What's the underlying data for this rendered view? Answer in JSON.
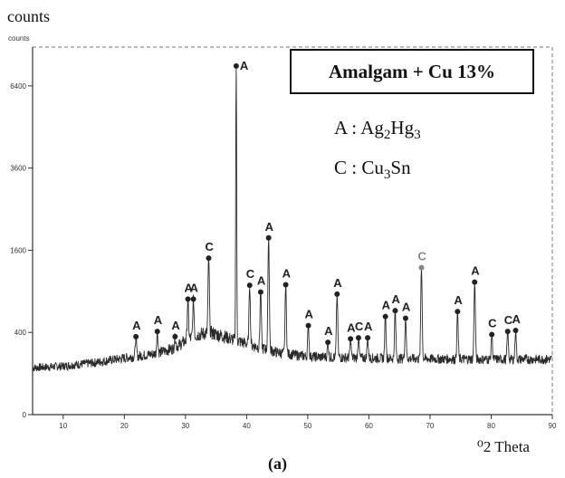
{
  "figure": {
    "top_label": "counts",
    "x_unit_label": "⁰2 Theta",
    "caption": "(a)",
    "sample_title": "Amalgam + Cu 13%",
    "legend": [
      {
        "letter": "A",
        "sep": " : ",
        "parts": [
          [
            "Ag",
            "2"
          ],
          [
            "Hg",
            "3"
          ]
        ]
      },
      {
        "letter": "C",
        "sep": " : ",
        "parts": [
          [
            "Cu",
            "3"
          ],
          [
            "Sn",
            ""
          ]
        ]
      }
    ]
  },
  "chart_data": {
    "type": "line",
    "title": "Amalgam + Cu 13%",
    "xlabel": "⁰2 Theta",
    "ylabel": "counts",
    "inner_ylabel": "counts",
    "xlim": [
      5,
      90
    ],
    "ylim": [
      0,
      8000
    ],
    "y_scale": "sqrt",
    "x_ticks": [
      10,
      20,
      30,
      40,
      50,
      60,
      70,
      80,
      90
    ],
    "y_ticks": [
      0,
      400,
      1600,
      3600,
      6400
    ],
    "grid": false,
    "legend": "top-right",
    "background_profile": [
      [
        5,
        130
      ],
      [
        10,
        140
      ],
      [
        15,
        160
      ],
      [
        20,
        190
      ],
      [
        25,
        220
      ],
      [
        28,
        260
      ],
      [
        30,
        320
      ],
      [
        32,
        380
      ],
      [
        34,
        400
      ],
      [
        36,
        370
      ],
      [
        38,
        330
      ],
      [
        42,
        270
      ],
      [
        45,
        230
      ],
      [
        50,
        200
      ],
      [
        55,
        195
      ],
      [
        60,
        190
      ],
      [
        70,
        185
      ],
      [
        80,
        182
      ],
      [
        90,
        182
      ]
    ],
    "peaks": [
      {
        "x": 21.9,
        "y": 360,
        "phase": "A"
      },
      {
        "x": 25.4,
        "y": 410,
        "phase": "A"
      },
      {
        "x": 28.3,
        "y": 360,
        "phase": "A"
      },
      {
        "x": 30.4,
        "y": 790,
        "phase": "A"
      },
      {
        "x": 31.3,
        "y": 790,
        "phase": "A"
      },
      {
        "x": 33.8,
        "y": 1450,
        "phase": "C"
      },
      {
        "x": 38.3,
        "y": 7200,
        "phase": "A"
      },
      {
        "x": 40.5,
        "y": 990,
        "phase": "C"
      },
      {
        "x": 42.3,
        "y": 890,
        "phase": "A"
      },
      {
        "x": 43.6,
        "y": 1850,
        "phase": "A"
      },
      {
        "x": 46.4,
        "y": 1000,
        "phase": "A"
      },
      {
        "x": 50.1,
        "y": 470,
        "phase": "A"
      },
      {
        "x": 53.3,
        "y": 310,
        "phase": "A"
      },
      {
        "x": 54.8,
        "y": 860,
        "phase": "A"
      },
      {
        "x": 57.0,
        "y": 340,
        "phase": "A"
      },
      {
        "x": 58.3,
        "y": 350,
        "phase": "C"
      },
      {
        "x": 59.8,
        "y": 350,
        "phase": "A"
      },
      {
        "x": 62.7,
        "y": 570,
        "phase": "A"
      },
      {
        "x": 64.3,
        "y": 640,
        "phase": "A"
      },
      {
        "x": 66.0,
        "y": 550,
        "phase": "A"
      },
      {
        "x": 68.6,
        "y": 1280,
        "phase": "C"
      },
      {
        "x": 74.5,
        "y": 630,
        "phase": "A"
      },
      {
        "x": 77.3,
        "y": 1040,
        "phase": "A"
      },
      {
        "x": 80.1,
        "y": 380,
        "phase": "C"
      },
      {
        "x": 82.7,
        "y": 410,
        "phase": "C"
      },
      {
        "x": 84.0,
        "y": 420,
        "phase": "A"
      }
    ]
  }
}
